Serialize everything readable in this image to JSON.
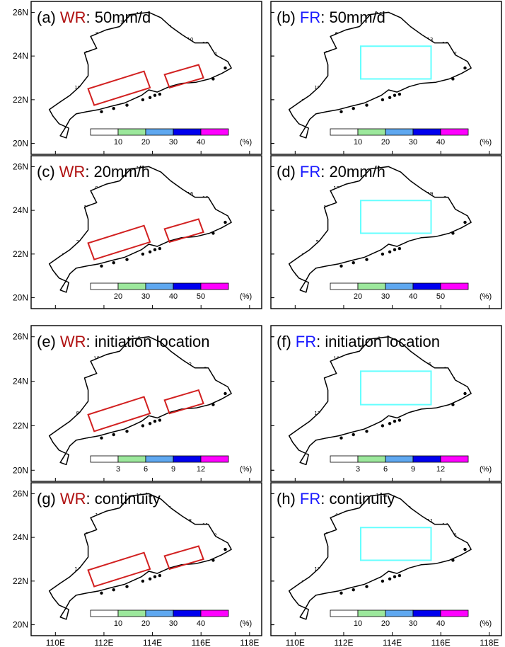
{
  "figure": {
    "y_tick_labels": [
      "26N",
      "24N",
      "22N",
      "20N"
    ],
    "x_tick_labels": [
      "110E",
      "112E",
      "114E",
      "116E",
      "118E"
    ]
  },
  "colors": {
    "wr_title": "#b01010",
    "fr_title": "#1a1aff",
    "wr_box": "#d22020",
    "fr_box": "#66ffff",
    "shade_levels": [
      "#ffffff",
      "#9ce89c",
      "#5fa8f0",
      "#0000ee",
      "#ff00ff"
    ]
  },
  "colorbar_unit": "(%)",
  "chart_data": [
    {
      "type": "heatmap",
      "panel_label": "(a)",
      "region": "WR",
      "title_rest": ": 50mm/d",
      "colorbar_ticks": [
        "10",
        "20",
        "30",
        "40"
      ],
      "colorbar_unit": "(%)",
      "xlim": [
        109,
        118.5
      ],
      "ylim": [
        19.5,
        26.5
      ]
    },
    {
      "type": "heatmap",
      "panel_label": "(b)",
      "region": "FR",
      "title_rest": ": 50mm/d",
      "colorbar_ticks": [
        "10",
        "20",
        "30",
        "40"
      ],
      "colorbar_unit": "(%)",
      "xlim": [
        109,
        118.5
      ],
      "ylim": [
        19.5,
        26.5
      ]
    },
    {
      "type": "heatmap",
      "panel_label": "(c)",
      "region": "WR",
      "title_rest": ": 20mm/h",
      "colorbar_ticks": [
        "20",
        "30",
        "40",
        "50"
      ],
      "colorbar_unit": "(%)",
      "xlim": [
        109,
        118.5
      ],
      "ylim": [
        19.5,
        26.5
      ]
    },
    {
      "type": "heatmap",
      "panel_label": "(d)",
      "region": "FR",
      "title_rest": ": 20mm/h",
      "colorbar_ticks": [
        "20",
        "30",
        "40",
        "50"
      ],
      "colorbar_unit": "(%)",
      "xlim": [
        109,
        118.5
      ],
      "ylim": [
        19.5,
        26.5
      ]
    },
    {
      "type": "heatmap",
      "panel_label": "(e)",
      "region": "WR",
      "title_rest": ": initiation location",
      "colorbar_ticks": [
        "3",
        "6",
        "9",
        "12"
      ],
      "colorbar_unit": "(%)",
      "xlim": [
        109,
        118.5
      ],
      "ylim": [
        19.5,
        26.5
      ]
    },
    {
      "type": "heatmap",
      "panel_label": "(f)",
      "region": "FR",
      "title_rest": ": initiation location",
      "colorbar_ticks": [
        "3",
        "6",
        "9",
        "12"
      ],
      "colorbar_unit": "(%)",
      "xlim": [
        109,
        118.5
      ],
      "ylim": [
        19.5,
        26.5
      ]
    },
    {
      "type": "heatmap",
      "panel_label": "(g)",
      "region": "WR",
      "title_rest": ": continuity",
      "colorbar_ticks": [
        "10",
        "20",
        "30",
        "40"
      ],
      "colorbar_unit": "(%)",
      "xlim": [
        109,
        118.5
      ],
      "ylim": [
        19.5,
        26.5
      ]
    },
    {
      "type": "heatmap",
      "panel_label": "(h)",
      "region": "FR",
      "title_rest": ": continuity",
      "colorbar_ticks": [
        "10",
        "20",
        "30",
        "40"
      ],
      "colorbar_unit": "(%)",
      "xlim": [
        109,
        118.5
      ],
      "ylim": [
        19.5,
        26.5
      ]
    }
  ]
}
